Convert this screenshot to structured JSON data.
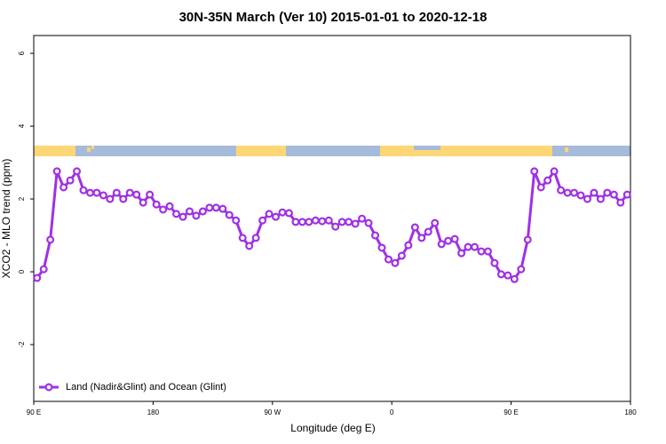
{
  "chart_data": {
    "type": "line",
    "title": "30N-35N March (Ver 10)   2015-01-01 to 2020-12-18",
    "xlabel": "Longitude (deg E)",
    "ylabel": "XCO2 - MLO trend (ppm)",
    "xlim": [
      90,
      540
    ],
    "ylim": [
      -3.56,
      6.49
    ],
    "xticks": [
      {
        "value": 90,
        "label": "90 E"
      },
      {
        "value": 180,
        "label": "180"
      },
      {
        "value": 270,
        "label": "90 W"
      },
      {
        "value": 360,
        "label": "0"
      },
      {
        "value": 450,
        "label": "90 E"
      },
      {
        "value": 540,
        "label": "180"
      }
    ],
    "yticks": [
      -2,
      0,
      2,
      4,
      6
    ],
    "legend_position": "bottom-left",
    "x": [
      92.5,
      97.5,
      102.5,
      107.5,
      112.5,
      117.5,
      122.5,
      127.5,
      132.5,
      137.5,
      142.5,
      147.5,
      152.5,
      157.5,
      162.5,
      167.5,
      172.5,
      177.5,
      182.5,
      187.5,
      192.5,
      197.5,
      202.5,
      207.5,
      212.5,
      217.5,
      222.5,
      227.5,
      232.5,
      237.5,
      242.5,
      247.5,
      252.5,
      257.5,
      262.5,
      267.5,
      272.5,
      277.5,
      282.5,
      287.5,
      292.5,
      297.5,
      302.5,
      307.5,
      312.5,
      317.5,
      322.5,
      327.5,
      332.5,
      337.5,
      342.5,
      347.5,
      352.5,
      357.5,
      362.5,
      367.5,
      372.5,
      377.5,
      382.5,
      387.5,
      392.5,
      397.5,
      402.5,
      407.5,
      412.5,
      417.5,
      422.5,
      427.5,
      432.5,
      437.5,
      442.5,
      447.5,
      452.5,
      457.5,
      462.5,
      467.5,
      472.5,
      477.5,
      482.5,
      487.5,
      492.5,
      497.5,
      502.5,
      507.5,
      512.5,
      517.5,
      522.5,
      527.5,
      532.5,
      537.5
    ],
    "series": [
      {
        "name": "Land (Nadir&Glint) and Ocean (Glint)",
        "color": "#a030e6",
        "values": [
          -0.17,
          0.07,
          0.88,
          2.76,
          2.32,
          2.51,
          2.76,
          2.24,
          2.17,
          2.17,
          2.1,
          2.0,
          2.17,
          2.0,
          2.17,
          2.12,
          1.9,
          2.12,
          1.85,
          1.71,
          1.8,
          1.59,
          1.51,
          1.66,
          1.54,
          1.66,
          1.76,
          1.76,
          1.73,
          1.56,
          1.41,
          0.93,
          0.71,
          0.93,
          1.41,
          1.59,
          1.51,
          1.63,
          1.61,
          1.37,
          1.37,
          1.37,
          1.41,
          1.39,
          1.41,
          1.24,
          1.37,
          1.37,
          1.32,
          1.46,
          1.34,
          1.0,
          0.66,
          0.34,
          0.24,
          0.44,
          0.73,
          1.22,
          0.93,
          1.1,
          1.34,
          0.76,
          0.85,
          0.9,
          0.51,
          0.68,
          0.68,
          0.56,
          0.56,
          0.24,
          -0.07,
          -0.1,
          -0.2,
          0.07,
          0.88,
          2.76,
          2.32,
          2.51,
          2.76,
          2.24,
          2.17,
          2.17,
          2.1,
          2.0,
          2.17,
          2.0,
          2.17,
          2.12,
          1.9,
          2.12
        ]
      }
    ]
  }
}
